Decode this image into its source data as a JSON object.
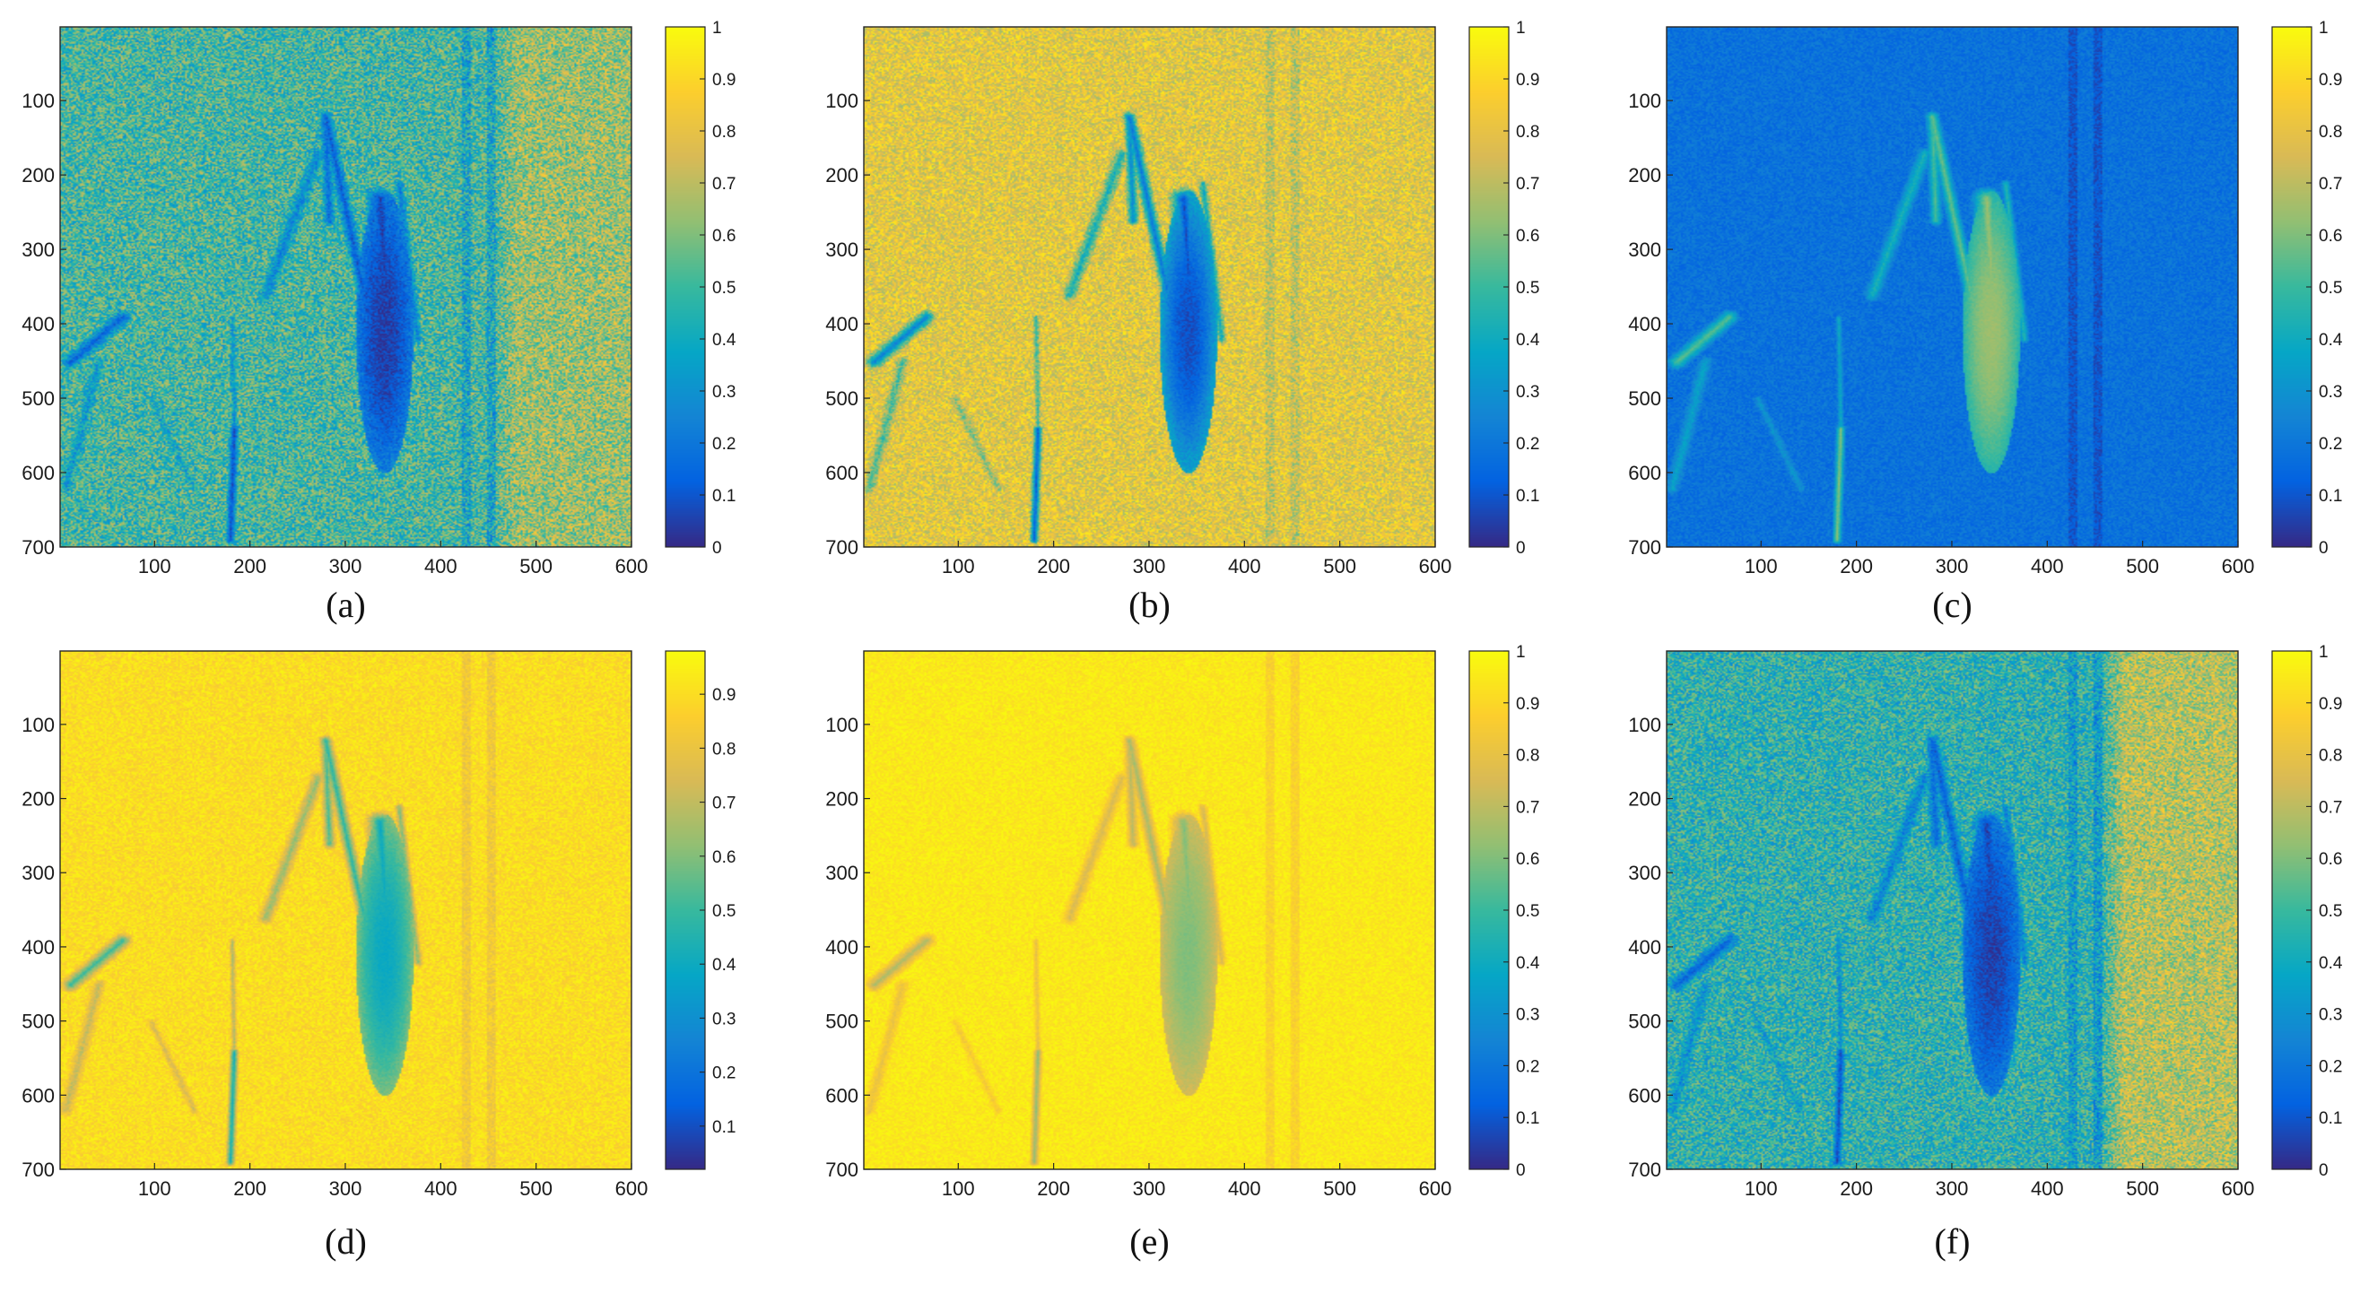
{
  "figure": {
    "colormap": "parula",
    "colormap_stops": [
      "#352a87",
      "#0363e1",
      "#1485d4",
      "#06a7c6",
      "#38b99e",
      "#92bf73",
      "#d9ba56",
      "#fcce2e",
      "#f9fb0e"
    ]
  },
  "chart_data": [
    {
      "type": "heatmap",
      "caption": "(a)",
      "x_ticks": [
        100,
        200,
        300,
        400,
        500,
        600
      ],
      "y_ticks": [
        100,
        200,
        300,
        400,
        500,
        600,
        700
      ],
      "xlim": [
        1,
        600
      ],
      "ylim": [
        1,
        700
      ],
      "y_reversed": true,
      "colorbar_ticks": [
        0,
        0.1,
        0.2,
        0.3,
        0.4,
        0.5,
        0.6,
        0.7,
        0.8,
        0.9,
        1
      ],
      "colorbar_labels": [
        "0",
        "0.1",
        "0.2",
        "0.3",
        "0.4",
        "0.5",
        "0.6",
        "0.7",
        "0.8",
        "0.9",
        "1"
      ],
      "clim": [
        0,
        1
      ],
      "background_level": 0.5,
      "noise_level": 0.22,
      "feature_level": 0.04,
      "feature_strength": 1.0,
      "right_zone_level": 0.65
    },
    {
      "type": "heatmap",
      "caption": "(b)",
      "x_ticks": [
        100,
        200,
        300,
        400,
        500,
        600
      ],
      "y_ticks": [
        100,
        200,
        300,
        400,
        500,
        600,
        700
      ],
      "xlim": [
        1,
        600
      ],
      "ylim": [
        1,
        700
      ],
      "y_reversed": true,
      "colorbar_ticks": [
        0,
        0.1,
        0.2,
        0.3,
        0.4,
        0.5,
        0.6,
        0.7,
        0.8,
        0.9,
        1
      ],
      "colorbar_labels": [
        "0",
        "0.1",
        "0.2",
        "0.3",
        "0.4",
        "0.5",
        "0.6",
        "0.7",
        "0.8",
        "0.9",
        "1"
      ],
      "clim": [
        0,
        1
      ],
      "background_level": 0.8,
      "noise_level": 0.16,
      "feature_level": 0.08,
      "feature_strength": 1.0,
      "right_zone_level": 0.8
    },
    {
      "type": "heatmap",
      "caption": "(c)",
      "x_ticks": [
        100,
        200,
        300,
        400,
        500,
        600
      ],
      "y_ticks": [
        100,
        200,
        300,
        400,
        500,
        600,
        700
      ],
      "xlim": [
        1,
        600
      ],
      "ylim": [
        1,
        700
      ],
      "y_reversed": true,
      "colorbar_ticks": [
        0,
        0.1,
        0.2,
        0.3,
        0.4,
        0.5,
        0.6,
        0.7,
        0.8,
        0.9,
        1
      ],
      "colorbar_labels": [
        "0",
        "0.1",
        "0.2",
        "0.3",
        "0.4",
        "0.5",
        "0.6",
        "0.7",
        "0.8",
        "0.9",
        "1"
      ],
      "clim": [
        0,
        1
      ],
      "background_level": 0.18,
      "noise_level": 0.06,
      "feature_level": 0.8,
      "feature_strength": 0.75,
      "right_zone_level": 0.18
    },
    {
      "type": "heatmap",
      "caption": "(d)",
      "x_ticks": [
        100,
        200,
        300,
        400,
        500,
        600
      ],
      "y_ticks": [
        100,
        200,
        300,
        400,
        500,
        600,
        700
      ],
      "xlim": [
        1,
        600
      ],
      "ylim": [
        1,
        700
      ],
      "y_reversed": true,
      "colorbar_ticks": [
        0.1,
        0.2,
        0.3,
        0.4,
        0.5,
        0.6,
        0.7,
        0.8,
        0.9
      ],
      "colorbar_labels": [
        "0.1",
        "0.2",
        "0.3",
        "0.4",
        "0.5",
        "0.6",
        "0.7",
        "0.8",
        "0.9"
      ],
      "clim": [
        0.02,
        0.98
      ],
      "background_level": 0.9,
      "noise_level": 0.07,
      "feature_level": 0.3,
      "feature_strength": 0.85,
      "right_zone_level": 0.9
    },
    {
      "type": "heatmap",
      "caption": "(e)",
      "x_ticks": [
        100,
        200,
        300,
        400,
        500,
        600
      ],
      "y_ticks": [
        100,
        200,
        300,
        400,
        500,
        600,
        700
      ],
      "xlim": [
        1,
        600
      ],
      "ylim": [
        1,
        700
      ],
      "y_reversed": true,
      "colorbar_ticks": [
        0,
        0.1,
        0.2,
        0.3,
        0.4,
        0.5,
        0.6,
        0.7,
        0.8,
        0.9,
        1
      ],
      "colorbar_labels": [
        "0",
        "0.1",
        "0.2",
        "0.3",
        "0.4",
        "0.5",
        "0.6",
        "0.7",
        "0.8",
        "0.9",
        "1"
      ],
      "clim": [
        0,
        1
      ],
      "background_level": 0.95,
      "noise_level": 0.05,
      "feature_level": 0.45,
      "feature_strength": 0.7,
      "right_zone_level": 0.95
    },
    {
      "type": "heatmap",
      "caption": "(f)",
      "x_ticks": [
        100,
        200,
        300,
        400,
        500,
        600
      ],
      "y_ticks": [
        100,
        200,
        300,
        400,
        500,
        600,
        700
      ],
      "xlim": [
        1,
        600
      ],
      "ylim": [
        1,
        700
      ],
      "y_reversed": true,
      "colorbar_ticks": [
        0,
        0.1,
        0.2,
        0.3,
        0.4,
        0.5,
        0.6,
        0.7,
        0.8,
        0.9,
        1
      ],
      "colorbar_labels": [
        "0",
        "0.1",
        "0.2",
        "0.3",
        "0.4",
        "0.5",
        "0.6",
        "0.7",
        "0.8",
        "0.9",
        "1"
      ],
      "clim": [
        0,
        1
      ],
      "background_level": 0.45,
      "noise_level": 0.2,
      "feature_level": 0.05,
      "feature_strength": 1.0,
      "right_zone_level": 0.7
    }
  ]
}
